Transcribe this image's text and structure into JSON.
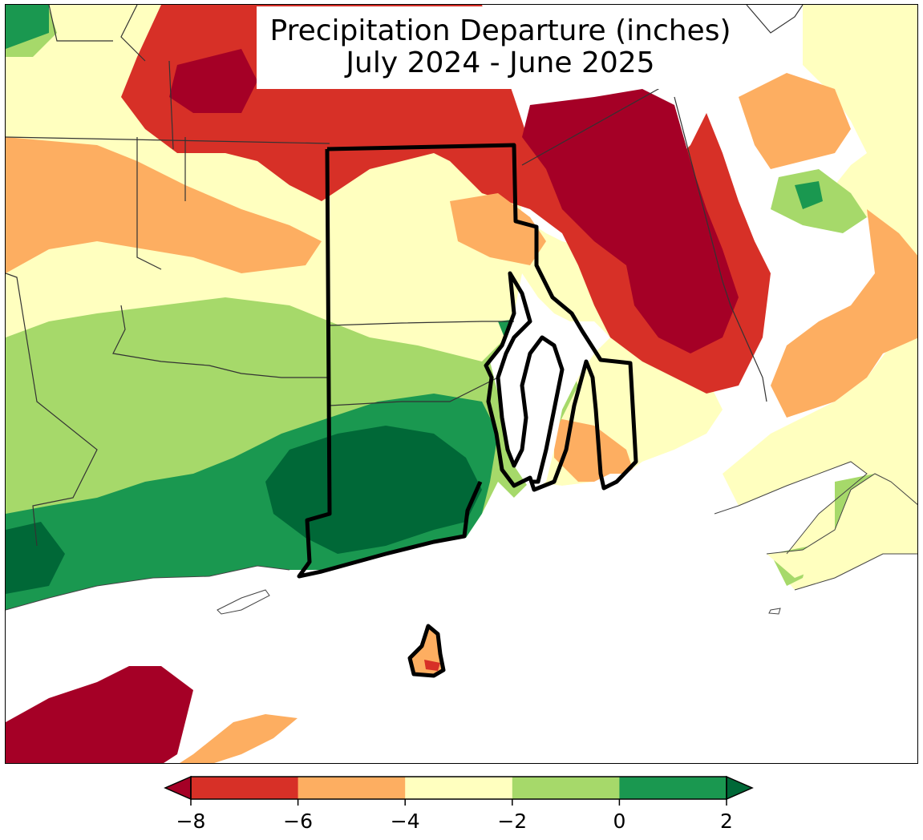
{
  "title": {
    "line1": "Precipitation Departure (inches)",
    "line2": "July 2024 - June 2025"
  },
  "legend": {
    "bins": [
      {
        "from": -8,
        "to": -6,
        "color": "#d73027"
      },
      {
        "from": -6,
        "to": -4,
        "color": "#fdae61"
      },
      {
        "from": -4,
        "to": -2,
        "color": "#ffffbf"
      },
      {
        "from": -2,
        "to": 0,
        "color": "#a6d96a"
      },
      {
        "from": 0,
        "to": 2,
        "color": "#1a9850"
      }
    ],
    "under_color": "#a50026",
    "over_color": "#006837",
    "ticks": [
      "−8",
      "−6",
      "−4",
      "−2",
      "0",
      "2"
    ],
    "extend": "both"
  },
  "colors": {
    "very_dry": "#a50026",
    "dry": "#d73027",
    "moderately_dry": "#fdae61",
    "slightly_dry": "#ffffbf",
    "near_normal": "#a6d96a",
    "wet": "#1a9850",
    "very_wet": "#006837",
    "water": "#ffffff",
    "boundary": "#000000"
  }
}
